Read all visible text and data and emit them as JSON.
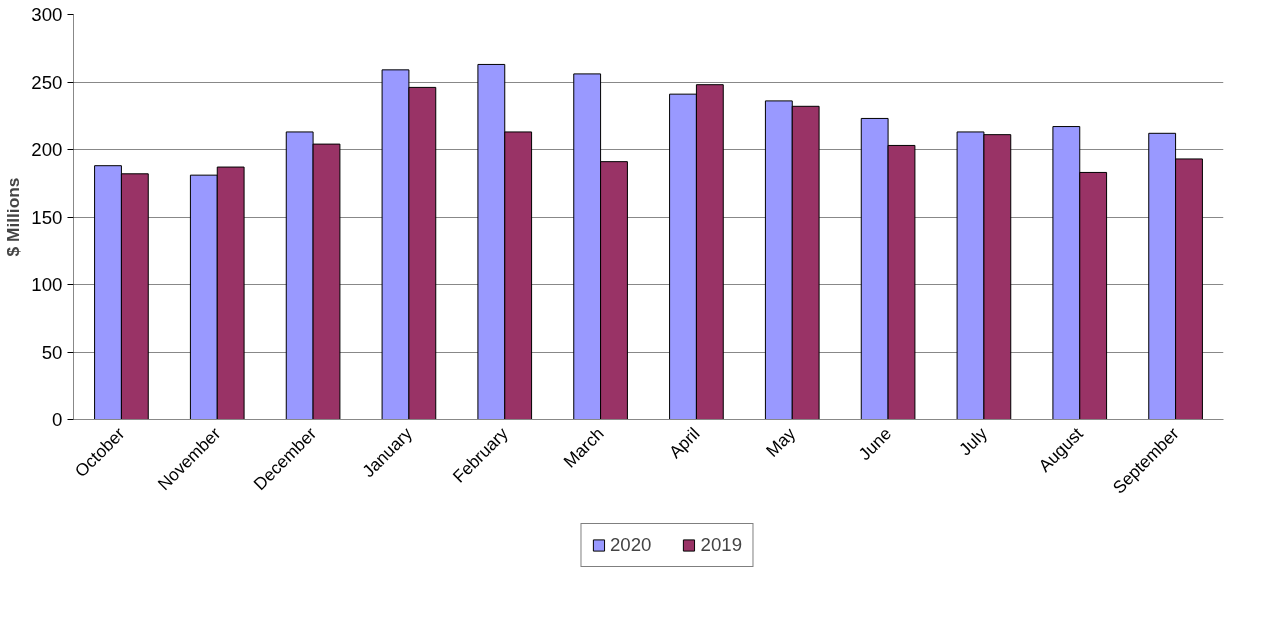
{
  "chart_data": {
    "type": "bar",
    "ylabel": "$ Millions",
    "categories": [
      "October",
      "November",
      "December",
      "January",
      "February",
      "March",
      "April",
      "May",
      "June",
      "July",
      "August",
      "September"
    ],
    "series": [
      {
        "name": "2020",
        "color": "#9999ff",
        "values": [
          188,
          181,
          213,
          259,
          263,
          256,
          241,
          236,
          223,
          213,
          217,
          212
        ]
      },
      {
        "name": "2019",
        "color": "#993366",
        "values": [
          182,
          187,
          204,
          246,
          213,
          191,
          248,
          232,
          203,
          211,
          183,
          193
        ]
      }
    ],
    "ylim": [
      0,
      300
    ],
    "yticks": [
      0,
      50,
      100,
      150,
      200,
      250,
      300
    ],
    "grid": "y",
    "legend": "bottom"
  }
}
